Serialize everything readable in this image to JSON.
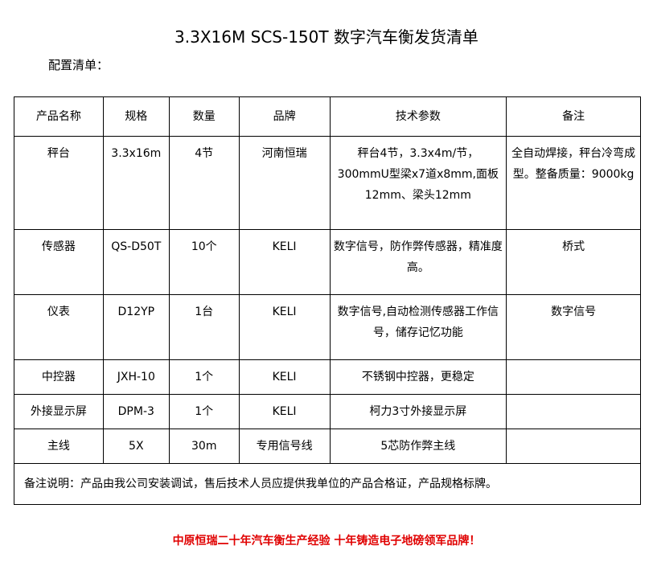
{
  "title": "3.3X16M SCS-150T 数字汽车衡发货清单",
  "subtitle": "配置清单：",
  "headers": [
    "产品名称",
    "规格",
    "数量",
    "品牌",
    "技术参数",
    "备注"
  ],
  "rows": [
    [
      "秤台",
      "3.3x16m",
      "4节",
      "河南恒瑞",
      "秤台4节，3.3x4m/节，300mmU型梁x7道x8mm,面板12mm、梁头12mm",
      "全自动焊接，秤台冷弯成型。整备质量：9000kg"
    ],
    [
      "传感器",
      "QS-D50T",
      "10个",
      "KELI",
      "数字信号，防作弊传感器，精准度高。",
      "桥式"
    ],
    [
      "仪表",
      "D12YP",
      "1台",
      "KELI",
      "数字信号,自动检测传感器工作信号，储存记忆功能",
      "数字信号"
    ],
    [
      "中控器",
      "JXH-10",
      "1个",
      "KELI",
      "不锈钢中控器，更稳定",
      ""
    ],
    [
      "外接显示屏",
      "DPM-3",
      "1个",
      "KELI",
      "柯力3寸外接显示屏",
      ""
    ],
    [
      "主线",
      "5X",
      "30m",
      "专用信号线",
      "5芯防作弊主线",
      ""
    ]
  ],
  "note": "备注说明：产品由我公司安装调试，售后技术人员应提供我单位的产品合格证，产品规格标牌。",
  "footer": "中原恒瑞二十年汽车衡生产经验 十年铸造电子地磅领军品牌！"
}
